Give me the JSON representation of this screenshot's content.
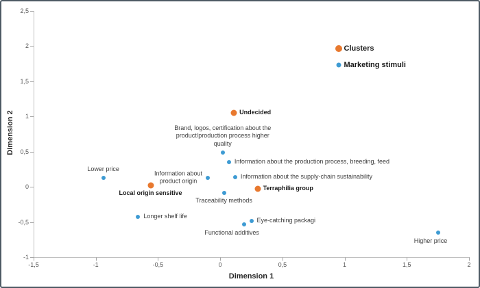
{
  "chart_data": {
    "type": "scatter",
    "title": "",
    "xlabel": "Dimension 1",
    "ylabel": "Dimension 2",
    "xlim": [
      -1.5,
      2
    ],
    "ylim": [
      -1,
      2.5
    ],
    "grid": false,
    "x_ticks": [
      "-1,5",
      "-1",
      "-0,5",
      "0",
      "0,5",
      "1",
      "1,5",
      "2"
    ],
    "x_tick_values": [
      -1.5,
      -1,
      -0.5,
      0,
      0.5,
      1,
      1.5,
      2
    ],
    "y_ticks": [
      "2,5",
      "2",
      "1,5",
      "1",
      "0,5",
      "0",
      "-0,5",
      "-1"
    ],
    "y_tick_values": [
      2.5,
      2,
      1.5,
      1,
      0.5,
      0,
      -0.5,
      -1
    ],
    "legend": {
      "position": "inside-top-right",
      "items": [
        {
          "label": "Clusters",
          "series_index": 0,
          "x": 0.95,
          "y": 1.97,
          "marker_size": 10
        },
        {
          "label": "Marketing stimuli",
          "series_index": 1,
          "x": 0.95,
          "y": 1.73,
          "marker_size": 7
        }
      ]
    },
    "series": [
      {
        "name": "Clusters",
        "color": "#E8792F",
        "marker_size": 9,
        "points": [
          {
            "label": "Undecided",
            "x": 0.11,
            "y": 1.05,
            "label_pos": "right",
            "bold": true
          },
          {
            "label": "Local origin sensitive",
            "x": -0.56,
            "y": 0.02,
            "label_pos": "below",
            "bold": true
          },
          {
            "label": "Terraphilia group",
            "x": 0.3,
            "y": -0.03,
            "label_pos": "right",
            "bold": true
          }
        ]
      },
      {
        "name": "Marketing stimuli",
        "color": "#3E9BD3",
        "marker_size": 6,
        "points": [
          {
            "label": "Lower price",
            "x": -0.94,
            "y": 0.13,
            "label_pos": "above"
          },
          {
            "label": "Brand, logos, certification about the\nproduct/production process higher\nquality",
            "x": 0.02,
            "y": 0.49,
            "label_pos": "above"
          },
          {
            "label": "Information about the production process, breeding, feed",
            "x": 0.07,
            "y": 0.35,
            "label_pos": "right"
          },
          {
            "label": "Information about\nproduct origin",
            "x": -0.1,
            "y": 0.13,
            "label_pos": "left"
          },
          {
            "label": "Information about the supply-chain sustainability",
            "x": 0.12,
            "y": 0.14,
            "label_pos": "right"
          },
          {
            "label": "Traceability methods",
            "x": 0.03,
            "y": -0.09,
            "label_pos": "below"
          },
          {
            "label": "Longer shelf life",
            "x": -0.66,
            "y": -0.43,
            "label_pos": "right"
          },
          {
            "label": "Eye-catching packagi",
            "x": 0.25,
            "y": -0.48,
            "label_pos": "right"
          },
          {
            "label": "Functional additives",
            "x": 0.19,
            "y": -0.53,
            "label_pos": "below-left"
          },
          {
            "label": "Higher price",
            "x": 1.75,
            "y": -0.65,
            "label_pos": "below-left"
          }
        ]
      }
    ]
  }
}
